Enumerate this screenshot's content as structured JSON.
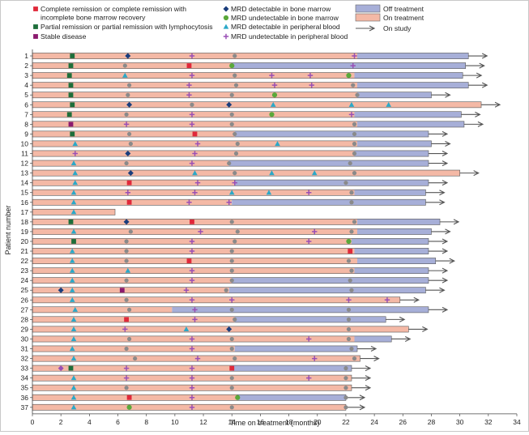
{
  "chart_data": {
    "type": "swimmer",
    "title": "",
    "xlabel": "Time on treatment (months)",
    "ylabel": "Patient number",
    "xlim": [
      0,
      34
    ],
    "x_ticks": [
      0,
      2,
      4,
      6,
      8,
      10,
      12,
      14,
      16,
      18,
      20,
      22,
      24,
      26,
      28,
      30,
      32,
      34
    ],
    "colors": {
      "cr": "#e0283a",
      "pr": "#1d6e3a",
      "sd": "#8b1a6e",
      "mrd_bm_detect": "#1a3d7c",
      "mrd_bm_undetect": "#5aa83a",
      "mrd_pb_detect": "#2aa8c8",
      "mrd_pb_undetect": "#9a4fb5",
      "on_treatment": "#f4b9a6",
      "off_treatment": "#a7afd8",
      "mrd_dots": "#8a8a8a"
    },
    "legend": [
      {
        "key": "cr",
        "label": "Complete remission or complete remission with incomplete bone marrow recovery",
        "lines": [
          "Complete remission or complete remission with",
          "incomplete bone marrow recovery"
        ]
      },
      {
        "key": "pr",
        "label": "Partial remission or partial remission with lymphocytosis",
        "lines": [
          "Partial remission or partial remission with lymphocytosis"
        ]
      },
      {
        "key": "sd",
        "label": "Stable disease",
        "lines": [
          "Stable disease"
        ]
      },
      {
        "key": "mrd_bm_detect",
        "label": "MRD detectable in bone marrow",
        "lines": [
          "MRD detectable in bone marrow"
        ]
      },
      {
        "key": "mrd_bm_undetect",
        "label": "MRD undetectable in bone marrow",
        "lines": [
          "MRD undetectable in bone marrow"
        ]
      },
      {
        "key": "mrd_pb_detect",
        "label": "MRD detectable in peripheral blood",
        "lines": [
          "MRD detectable in peripheral blood"
        ]
      },
      {
        "key": "mrd_pb_undetect",
        "label": "MRD undetectable in peripheral blood",
        "lines": [
          "MRD undetectable in peripheral blood"
        ]
      },
      {
        "key": "off_treatment",
        "label": "Off treatment",
        "lines": [
          "Off treatment"
        ]
      },
      {
        "key": "on_treatment",
        "label": "On treatment",
        "lines": [
          "On treatment"
        ]
      },
      {
        "key": "on_study",
        "label": "On study",
        "lines": [
          "On study"
        ]
      }
    ],
    "patients": [
      {
        "id": "1",
        "on_end": 22.8,
        "end": 30.6,
        "on_study": true,
        "events": [
          [
            2.8,
            "pr"
          ],
          [
            6.7,
            "bm_d"
          ],
          [
            11.2,
            "pb_u"
          ],
          [
            14.2,
            "dot"
          ],
          [
            22.6,
            "pb_u"
          ]
        ]
      },
      {
        "id": "2",
        "on_end": 14.0,
        "end": 30.4,
        "on_study": true,
        "events": [
          [
            2.7,
            "pr"
          ],
          [
            6.5,
            "dot"
          ],
          [
            11.0,
            "cr"
          ],
          [
            14.0,
            "bm_u"
          ],
          [
            22.5,
            "pb_u"
          ]
        ]
      },
      {
        "id": "3",
        "on_end": 22.6,
        "end": 30.2,
        "on_study": true,
        "events": [
          [
            2.6,
            "pr"
          ],
          [
            6.5,
            "pb_d"
          ],
          [
            11.2,
            "pb_u"
          ],
          [
            14.2,
            "dot"
          ],
          [
            16.8,
            "pb_u"
          ],
          [
            19.5,
            "pb_u"
          ],
          [
            22.2,
            "bm_u"
          ]
        ]
      },
      {
        "id": "4",
        "on_end": 22.8,
        "end": 30.6,
        "on_study": true,
        "events": [
          [
            2.7,
            "pr"
          ],
          [
            6.8,
            "dot"
          ],
          [
            11.0,
            "pb_u"
          ],
          [
            14.3,
            "dot"
          ],
          [
            17.0,
            "pb_u"
          ],
          [
            19.6,
            "pb_u"
          ],
          [
            22.5,
            "dot"
          ]
        ]
      },
      {
        "id": "5",
        "on_end": 22.8,
        "end": 28.0,
        "on_study": true,
        "events": [
          [
            2.7,
            "pr"
          ],
          [
            6.7,
            "dot"
          ],
          [
            11.0,
            "pb_u"
          ],
          [
            14.0,
            "dot"
          ],
          [
            17.0,
            "bm_u"
          ],
          [
            22.8,
            "dot"
          ]
        ]
      },
      {
        "id": "6",
        "on_end": 31.5,
        "end": 31.5,
        "on_study": true,
        "events": [
          [
            2.8,
            "pr"
          ],
          [
            6.8,
            "bm_d"
          ],
          [
            11.2,
            "dot"
          ],
          [
            13.8,
            "bm_d"
          ],
          [
            16.9,
            "pb_d"
          ],
          [
            22.4,
            "pb_d"
          ],
          [
            25.0,
            "pb_d"
          ]
        ]
      },
      {
        "id": "7",
        "on_end": 22.6,
        "end": 30.1,
        "on_study": true,
        "events": [
          [
            2.6,
            "pr"
          ],
          [
            6.6,
            "dot"
          ],
          [
            11.2,
            "pb_u"
          ],
          [
            14.0,
            "dot"
          ],
          [
            16.8,
            "bm_u"
          ],
          [
            22.4,
            "pb_u"
          ]
        ]
      },
      {
        "id": "8",
        "on_end": 22.8,
        "end": 30.3,
        "on_study": true,
        "events": [
          [
            2.7,
            "sd"
          ],
          [
            6.6,
            "pb_u"
          ],
          [
            11.2,
            "pb_u"
          ],
          [
            14.0,
            "dot"
          ],
          [
            22.6,
            "dot"
          ]
        ]
      },
      {
        "id": "9",
        "on_end": 14.2,
        "end": 27.8,
        "on_study": true,
        "events": [
          [
            2.8,
            "pr"
          ],
          [
            6.8,
            "dot"
          ],
          [
            11.4,
            "cr"
          ],
          [
            14.2,
            "dot"
          ],
          [
            22.6,
            "dot"
          ]
        ]
      },
      {
        "id": "10",
        "on_end": 22.8,
        "end": 28.0,
        "on_study": true,
        "events": [
          [
            3.0,
            "pb_d"
          ],
          [
            6.9,
            "dot"
          ],
          [
            11.6,
            "pb_u"
          ],
          [
            14.4,
            "dot"
          ],
          [
            17.2,
            "pb_d"
          ],
          [
            22.6,
            "dot"
          ]
        ]
      },
      {
        "id": "11",
        "on_end": 22.6,
        "end": 27.8,
        "on_study": true,
        "events": [
          [
            3.0,
            "pb_u"
          ],
          [
            6.7,
            "bm_d"
          ],
          [
            11.4,
            "pb_u"
          ],
          [
            14.3,
            "dot"
          ],
          [
            22.6,
            "dot"
          ]
        ]
      },
      {
        "id": "12",
        "on_end": 13.8,
        "end": 27.8,
        "on_study": true,
        "events": [
          [
            2.9,
            "pb_d"
          ],
          [
            6.6,
            "dot"
          ],
          [
            11.2,
            "pb_u"
          ],
          [
            13.8,
            "dot"
          ],
          [
            22.3,
            "dot"
          ]
        ]
      },
      {
        "id": "13",
        "on_end": 30.0,
        "end": 30.0,
        "on_study": true,
        "events": [
          [
            3.0,
            "pb_d"
          ],
          [
            6.9,
            "bm_d"
          ],
          [
            11.4,
            "pb_d"
          ],
          [
            14.2,
            "dot"
          ],
          [
            16.8,
            "pb_d"
          ],
          [
            19.8,
            "pb_d"
          ],
          [
            22.6,
            "dot"
          ]
        ]
      },
      {
        "id": "14",
        "on_end": 14.2,
        "end": 27.8,
        "on_study": true,
        "events": [
          [
            3.0,
            "pb_d"
          ],
          [
            6.8,
            "cr"
          ],
          [
            11.6,
            "pb_u"
          ],
          [
            14.2,
            "pb_u"
          ],
          [
            22.0,
            "dot"
          ]
        ]
      },
      {
        "id": "15",
        "on_end": 22.6,
        "end": 27.6,
        "on_study": true,
        "events": [
          [
            2.9,
            "pb_d"
          ],
          [
            6.7,
            "pb_u"
          ],
          [
            11.4,
            "pb_u"
          ],
          [
            14.0,
            "pb_d"
          ],
          [
            16.6,
            "pb_d"
          ],
          [
            19.4,
            "pb_u"
          ],
          [
            22.4,
            "dot"
          ]
        ]
      },
      {
        "id": "16",
        "on_end": 14.0,
        "end": 27.6,
        "on_study": true,
        "events": [
          [
            2.9,
            "pb_d"
          ],
          [
            6.8,
            "cr"
          ],
          [
            11.0,
            "pb_u"
          ],
          [
            13.8,
            "pb_u"
          ],
          [
            22.4,
            "dot"
          ]
        ]
      },
      {
        "id": "17",
        "on_end": 5.8,
        "end": 5.8,
        "on_study": false,
        "events": [
          [
            2.9,
            "pb_d"
          ]
        ]
      },
      {
        "id": "18",
        "on_end": 22.8,
        "end": 28.6,
        "on_study": true,
        "events": [
          [
            2.7,
            "pr"
          ],
          [
            6.6,
            "bm_d"
          ],
          [
            11.2,
            "cr"
          ],
          [
            14.0,
            "dot"
          ],
          [
            22.6,
            "dot"
          ]
        ]
      },
      {
        "id": "19",
        "on_end": 22.8,
        "end": 28.0,
        "on_study": true,
        "events": [
          [
            2.9,
            "pb_d"
          ],
          [
            6.9,
            "dot"
          ],
          [
            11.8,
            "pb_u"
          ],
          [
            14.4,
            "dot"
          ],
          [
            19.8,
            "pb_u"
          ],
          [
            22.4,
            "dot"
          ]
        ]
      },
      {
        "id": "20",
        "on_end": 22.4,
        "end": 27.8,
        "on_study": true,
        "events": [
          [
            2.9,
            "pr"
          ],
          [
            6.6,
            "dot"
          ],
          [
            11.2,
            "pb_u"
          ],
          [
            14.2,
            "dot"
          ],
          [
            19.4,
            "pb_u"
          ],
          [
            22.2,
            "bm_u"
          ]
        ]
      },
      {
        "id": "21",
        "on_end": 22.6,
        "end": 27.8,
        "on_study": true,
        "events": [
          [
            2.8,
            "pb_d"
          ],
          [
            6.6,
            "dot"
          ],
          [
            11.2,
            "pb_u"
          ],
          [
            14.0,
            "dot"
          ],
          [
            22.3,
            "cr"
          ]
        ]
      },
      {
        "id": "22",
        "on_end": 22.8,
        "end": 28.3,
        "on_study": true,
        "events": [
          [
            2.8,
            "pb_d"
          ],
          [
            6.6,
            "dot"
          ],
          [
            11.0,
            "cr"
          ],
          [
            14.0,
            "dot"
          ],
          [
            22.2,
            "dot"
          ]
        ]
      },
      {
        "id": "23",
        "on_end": 22.6,
        "end": 27.8,
        "on_study": true,
        "events": [
          [
            2.8,
            "pb_d"
          ],
          [
            6.7,
            "pb_d"
          ],
          [
            11.2,
            "pb_u"
          ],
          [
            14.0,
            "dot"
          ],
          [
            22.4,
            "dot"
          ]
        ]
      },
      {
        "id": "24",
        "on_end": 14.0,
        "end": 27.8,
        "on_study": true,
        "events": [
          [
            2.8,
            "pb_d"
          ],
          [
            6.6,
            "dot"
          ],
          [
            11.2,
            "pb_u"
          ],
          [
            14.0,
            "dot"
          ],
          [
            22.3,
            "dot"
          ]
        ]
      },
      {
        "id": "25",
        "on_end": 13.8,
        "end": 27.6,
        "on_study": true,
        "events": [
          [
            2.0,
            "bm_d"
          ],
          [
            2.8,
            "pb_d"
          ],
          [
            6.3,
            "sd"
          ],
          [
            10.8,
            "pb_u"
          ],
          [
            13.6,
            "dot"
          ],
          [
            22.4,
            "dot"
          ]
        ]
      },
      {
        "id": "26",
        "on_end": 25.8,
        "end": 25.8,
        "on_study": true,
        "events": [
          [
            2.8,
            "pb_d"
          ],
          [
            6.6,
            "dot"
          ],
          [
            11.2,
            "pb_u"
          ],
          [
            14.0,
            "pb_u"
          ],
          [
            22.2,
            "pb_u"
          ],
          [
            24.9,
            "pb_u"
          ]
        ]
      },
      {
        "id": "27",
        "on_end": 9.8,
        "end": 27.8,
        "on_study": true,
        "events": [
          [
            3.0,
            "pb_d"
          ],
          [
            6.8,
            "dot"
          ],
          [
            11.4,
            "pb_u"
          ],
          [
            14.0,
            "dot"
          ],
          [
            22.2,
            "dot"
          ]
        ]
      },
      {
        "id": "28",
        "on_end": 14.2,
        "end": 24.8,
        "on_study": true,
        "events": [
          [
            2.9,
            "pb_d"
          ],
          [
            6.6,
            "cr"
          ],
          [
            11.4,
            "pb_u"
          ],
          [
            14.2,
            "dot"
          ],
          [
            22.2,
            "dot"
          ]
        ]
      },
      {
        "id": "29",
        "on_end": 26.4,
        "end": 26.4,
        "on_study": true,
        "events": [
          [
            2.9,
            "pb_d"
          ],
          [
            6.5,
            "pb_u"
          ],
          [
            10.8,
            "pb_d"
          ],
          [
            13.8,
            "bm_d"
          ],
          [
            22.2,
            "dot"
          ]
        ]
      },
      {
        "id": "30",
        "on_end": 22.6,
        "end": 25.2,
        "on_study": true,
        "events": [
          [
            2.9,
            "pb_d"
          ],
          [
            6.8,
            "dot"
          ],
          [
            11.2,
            "pb_u"
          ],
          [
            14.0,
            "dot"
          ],
          [
            19.4,
            "pb_u"
          ],
          [
            22.2,
            "dot"
          ]
        ]
      },
      {
        "id": "31",
        "on_end": 14.2,
        "end": 22.8,
        "on_study": true,
        "events": [
          [
            2.8,
            "pb_d"
          ],
          [
            6.6,
            "dot"
          ],
          [
            11.2,
            "pb_u"
          ],
          [
            14.0,
            "dot"
          ],
          [
            22.4,
            "dot"
          ]
        ]
      },
      {
        "id": "32",
        "on_end": 23.0,
        "end": 23.0,
        "on_study": true,
        "events": [
          [
            2.9,
            "pb_d"
          ],
          [
            7.2,
            "dot"
          ],
          [
            11.6,
            "pb_u"
          ],
          [
            14.2,
            "dot"
          ],
          [
            19.8,
            "pb_u"
          ],
          [
            22.6,
            "dot"
          ]
        ]
      },
      {
        "id": "33",
        "on_end": 14.0,
        "end": 22.4,
        "on_study": true,
        "events": [
          [
            2.0,
            "sd_diamond"
          ],
          [
            2.7,
            "pr"
          ],
          [
            6.6,
            "pb_u"
          ],
          [
            11.2,
            "pb_u"
          ],
          [
            14.0,
            "cr"
          ],
          [
            22.0,
            "dot"
          ]
        ]
      },
      {
        "id": "34",
        "on_end": 22.4,
        "end": 22.4,
        "on_study": true,
        "events": [
          [
            2.9,
            "pb_d"
          ],
          [
            6.6,
            "pb_u"
          ],
          [
            11.2,
            "pb_u"
          ],
          [
            14.0,
            "dot"
          ],
          [
            19.4,
            "pb_u"
          ],
          [
            22.0,
            "dot"
          ]
        ]
      },
      {
        "id": "35",
        "on_end": 22.4,
        "end": 22.4,
        "on_study": true,
        "events": [
          [
            2.9,
            "pb_d"
          ],
          [
            6.6,
            "dot"
          ],
          [
            11.2,
            "pb_u"
          ],
          [
            14.0,
            "dot"
          ],
          [
            22.0,
            "dot"
          ]
        ]
      },
      {
        "id": "36",
        "on_end": 14.4,
        "end": 22.0,
        "on_study": true,
        "events": [
          [
            2.9,
            "pb_d"
          ],
          [
            6.8,
            "cr"
          ],
          [
            11.2,
            "pb_u"
          ],
          [
            14.4,
            "bm_u"
          ],
          [
            22.0,
            "dot"
          ]
        ]
      },
      {
        "id": "37",
        "on_end": 22.0,
        "end": 22.0,
        "on_study": true,
        "events": [
          [
            2.9,
            "pb_d"
          ],
          [
            6.8,
            "bm_u"
          ],
          [
            11.2,
            "pb_u"
          ],
          [
            14.0,
            "dot"
          ],
          [
            22.0,
            "dot"
          ]
        ]
      }
    ]
  }
}
